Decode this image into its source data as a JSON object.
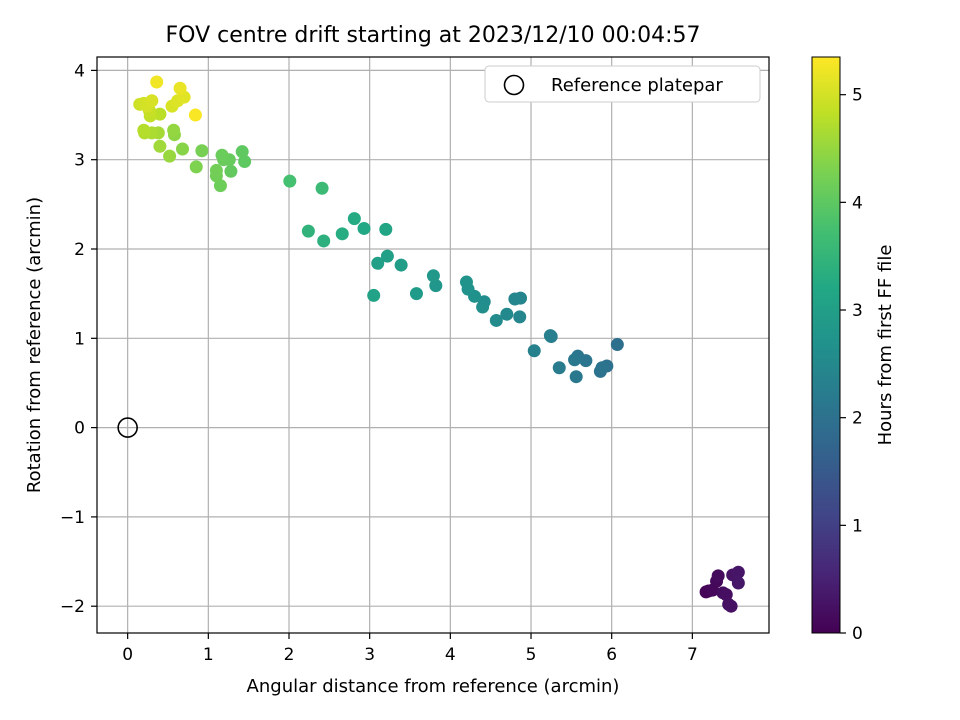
{
  "chart_data": {
    "type": "scatter",
    "title": "FOV centre drift starting at 2023/12/10 00:04:57",
    "xlabel": "Angular distance from reference (arcmin)",
    "ylabel": "Rotation from reference (arcmin)",
    "xlim": [
      -0.38,
      7.95
    ],
    "ylim": [
      -2.3,
      4.15
    ],
    "xticks": [
      0,
      1,
      2,
      3,
      4,
      5,
      6,
      7
    ],
    "yticks": [
      -2,
      -1,
      0,
      1,
      2,
      3,
      4
    ],
    "xtick_labels": [
      "0",
      "1",
      "2",
      "3",
      "4",
      "5",
      "6",
      "7"
    ],
    "ytick_labels": [
      "−2",
      "−1",
      "0",
      "1",
      "2",
      "3",
      "4"
    ],
    "grid": true,
    "legend": {
      "placement": "top-right",
      "entries": [
        "Reference platepar"
      ]
    },
    "reference_point": {
      "x": 0,
      "y": 0
    },
    "colorbar": {
      "label": "Hours from first FF file",
      "min": 0,
      "max": 5.35,
      "ticks": [
        0,
        1,
        2,
        3,
        4,
        5
      ],
      "tick_labels": [
        "0",
        "1",
        "2",
        "3",
        "4",
        "5"
      ],
      "colormap": "viridis"
    },
    "points": [
      {
        "x": 7.2,
        "y": -1.83,
        "c": 0.05
      },
      {
        "x": 7.17,
        "y": -1.84,
        "c": 0.08
      },
      {
        "x": 7.25,
        "y": -1.82,
        "c": 0.1
      },
      {
        "x": 7.3,
        "y": -1.72,
        "c": 0.12
      },
      {
        "x": 7.32,
        "y": -1.66,
        "c": 0.15
      },
      {
        "x": 7.38,
        "y": -1.85,
        "c": 0.18
      },
      {
        "x": 7.42,
        "y": -1.87,
        "c": 0.2
      },
      {
        "x": 7.45,
        "y": -1.98,
        "c": 0.22
      },
      {
        "x": 7.48,
        "y": -2.0,
        "c": 0.25
      },
      {
        "x": 7.5,
        "y": -1.65,
        "c": 0.28
      },
      {
        "x": 7.57,
        "y": -1.62,
        "c": 0.3
      },
      {
        "x": 7.57,
        "y": -1.74,
        "c": 0.33
      },
      {
        "x": 6.07,
        "y": 0.93,
        "c": 1.95
      },
      {
        "x": 5.94,
        "y": 0.69,
        "c": 2.0
      },
      {
        "x": 5.86,
        "y": 0.63,
        "c": 2.02
      },
      {
        "x": 5.88,
        "y": 0.67,
        "c": 2.05
      },
      {
        "x": 5.68,
        "y": 0.75,
        "c": 2.08
      },
      {
        "x": 5.58,
        "y": 0.8,
        "c": 2.1
      },
      {
        "x": 5.54,
        "y": 0.76,
        "c": 2.13
      },
      {
        "x": 5.56,
        "y": 0.57,
        "c": 2.15
      },
      {
        "x": 5.35,
        "y": 0.67,
        "c": 2.2
      },
      {
        "x": 5.25,
        "y": 1.02,
        "c": 2.25
      },
      {
        "x": 5.24,
        "y": 1.03,
        "c": 2.28
      },
      {
        "x": 5.04,
        "y": 0.86,
        "c": 2.33
      },
      {
        "x": 4.87,
        "y": 1.45,
        "c": 2.4
      },
      {
        "x": 4.86,
        "y": 1.24,
        "c": 2.43
      },
      {
        "x": 4.8,
        "y": 1.44,
        "c": 2.46
      },
      {
        "x": 4.7,
        "y": 1.27,
        "c": 2.5
      },
      {
        "x": 4.57,
        "y": 1.2,
        "c": 2.55
      },
      {
        "x": 4.42,
        "y": 1.41,
        "c": 2.6
      },
      {
        "x": 4.4,
        "y": 1.35,
        "c": 2.63
      },
      {
        "x": 4.3,
        "y": 1.47,
        "c": 2.67
      },
      {
        "x": 4.22,
        "y": 1.55,
        "c": 2.7
      },
      {
        "x": 4.2,
        "y": 1.63,
        "c": 2.72
      },
      {
        "x": 3.82,
        "y": 1.59,
        "c": 2.8
      },
      {
        "x": 3.79,
        "y": 1.7,
        "c": 2.83
      },
      {
        "x": 3.58,
        "y": 1.5,
        "c": 2.9
      },
      {
        "x": 3.39,
        "y": 1.82,
        "c": 2.95
      },
      {
        "x": 3.22,
        "y": 1.92,
        "c": 3.0
      },
      {
        "x": 3.1,
        "y": 1.84,
        "c": 3.03
      },
      {
        "x": 3.05,
        "y": 1.48,
        "c": 3.06
      },
      {
        "x": 3.2,
        "y": 2.22,
        "c": 3.15
      },
      {
        "x": 2.93,
        "y": 2.23,
        "c": 3.2
      },
      {
        "x": 2.81,
        "y": 2.34,
        "c": 3.25
      },
      {
        "x": 2.66,
        "y": 2.17,
        "c": 3.3
      },
      {
        "x": 2.43,
        "y": 2.09,
        "c": 3.38
      },
      {
        "x": 2.24,
        "y": 2.2,
        "c": 3.45
      },
      {
        "x": 2.41,
        "y": 2.68,
        "c": 3.6
      },
      {
        "x": 2.01,
        "y": 2.76,
        "c": 3.75
      },
      {
        "x": 1.45,
        "y": 2.98,
        "c": 4.0
      },
      {
        "x": 1.42,
        "y": 3.09,
        "c": 4.02
      },
      {
        "x": 1.28,
        "y": 2.87,
        "c": 4.05
      },
      {
        "x": 1.26,
        "y": 3.0,
        "c": 4.08
      },
      {
        "x": 1.19,
        "y": 3.0,
        "c": 4.1
      },
      {
        "x": 1.17,
        "y": 3.05,
        "c": 4.12
      },
      {
        "x": 1.15,
        "y": 2.71,
        "c": 4.15
      },
      {
        "x": 1.1,
        "y": 2.82,
        "c": 4.18
      },
      {
        "x": 1.1,
        "y": 2.88,
        "c": 4.2
      },
      {
        "x": 0.92,
        "y": 3.1,
        "c": 4.25
      },
      {
        "x": 0.85,
        "y": 2.92,
        "c": 4.3
      },
      {
        "x": 0.68,
        "y": 3.12,
        "c": 4.38
      },
      {
        "x": 0.58,
        "y": 3.28,
        "c": 4.45
      },
      {
        "x": 0.57,
        "y": 3.33,
        "c": 4.48
      },
      {
        "x": 0.52,
        "y": 3.04,
        "c": 4.52
      },
      {
        "x": 0.4,
        "y": 3.15,
        "c": 4.58
      },
      {
        "x": 0.38,
        "y": 3.3,
        "c": 4.62
      },
      {
        "x": 0.3,
        "y": 3.3,
        "c": 4.68
      },
      {
        "x": 0.21,
        "y": 3.3,
        "c": 4.72
      },
      {
        "x": 0.2,
        "y": 3.33,
        "c": 4.75
      },
      {
        "x": 0.4,
        "y": 3.51,
        "c": 4.8
      },
      {
        "x": 0.28,
        "y": 3.49,
        "c": 4.85
      },
      {
        "x": 0.27,
        "y": 3.55,
        "c": 4.9
      },
      {
        "x": 0.15,
        "y": 3.62,
        "c": 4.95
      },
      {
        "x": 0.2,
        "y": 3.63,
        "c": 4.98
      },
      {
        "x": 0.24,
        "y": 3.6,
        "c": 5.0
      },
      {
        "x": 0.3,
        "y": 3.66,
        "c": 5.03
      },
      {
        "x": 0.55,
        "y": 3.6,
        "c": 5.05
      },
      {
        "x": 0.62,
        "y": 3.66,
        "c": 5.08
      },
      {
        "x": 0.7,
        "y": 3.7,
        "c": 5.12
      },
      {
        "x": 0.65,
        "y": 3.8,
        "c": 5.18
      },
      {
        "x": 0.36,
        "y": 3.87,
        "c": 5.25
      },
      {
        "x": 0.84,
        "y": 3.5,
        "c": 5.32
      }
    ]
  }
}
